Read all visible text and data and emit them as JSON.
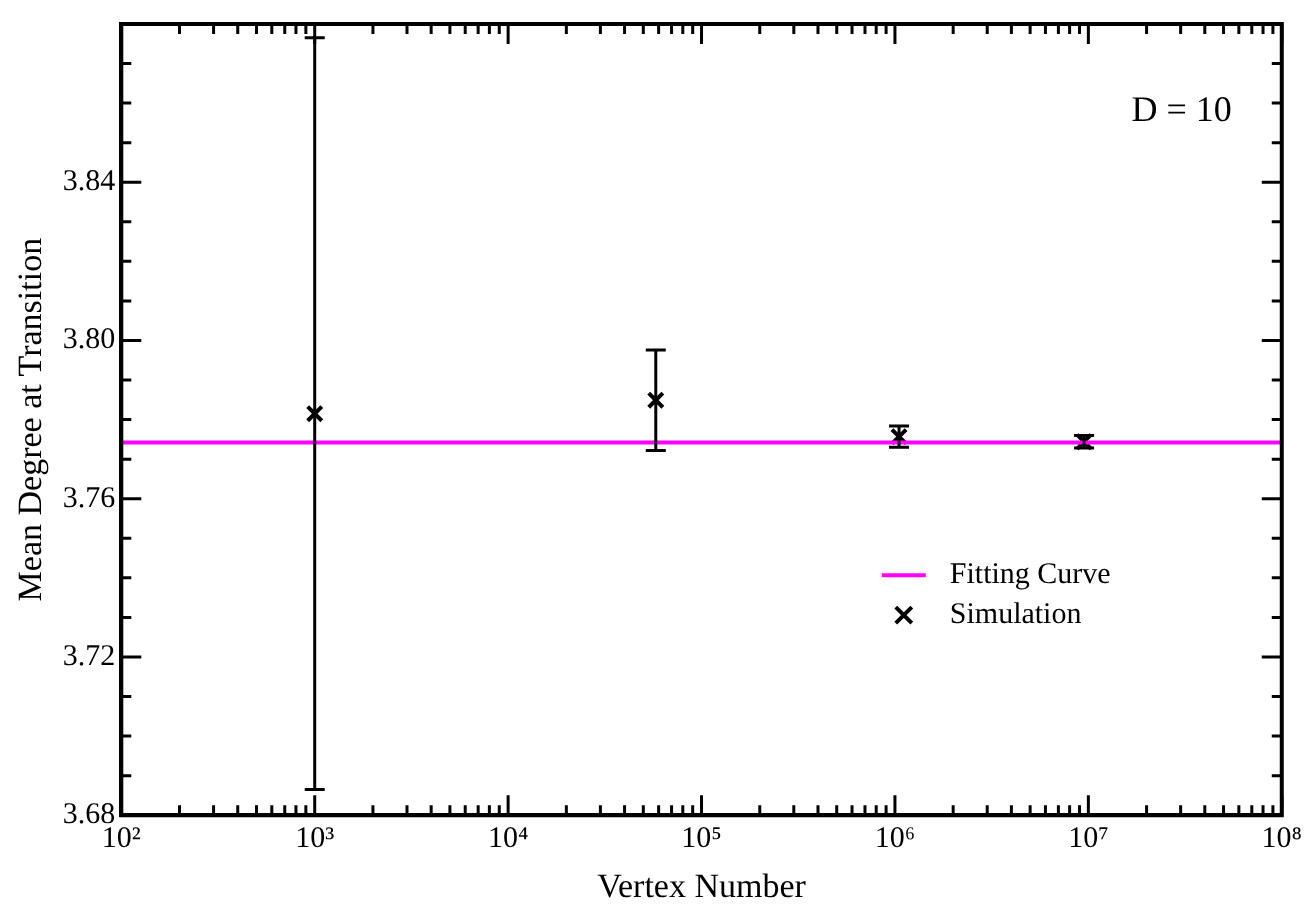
{
  "chart_data": {
    "type": "scatter",
    "xlabel": "Vertex Number",
    "ylabel": "Mean Degree at Transition",
    "annotations": [
      "D = 10"
    ],
    "log": "x",
    "xlim": [
      100,
      100000000
    ],
    "ylim": [
      3.68,
      3.88
    ],
    "xticks": [
      {
        "value": 100,
        "label": "10²"
      },
      {
        "value": 1000,
        "label": "10³"
      },
      {
        "value": 10000,
        "label": "10⁴"
      },
      {
        "value": 100000,
        "label": "10⁵"
      },
      {
        "value": 1000000,
        "label": "10⁶"
      },
      {
        "value": 10000000,
        "label": "10⁷"
      },
      {
        "value": 100000000,
        "label": "10⁸"
      }
    ],
    "yticks": [
      3.68,
      3.72,
      3.76,
      {
        "value": 3.8,
        "label": "3.80"
      },
      3.84
    ],
    "grid": false,
    "legend": "bottom right",
    "series": [
      {
        "name": "Fitting Curve",
        "type": "line",
        "marker": "none",
        "color": "#ff00ff",
        "x": [
          100,
          100000000
        ],
        "values": [
          3.7742,
          3.7742
        ]
      },
      {
        "name": "Simulation",
        "marker": "cross",
        "color": "#000000",
        "x": [
          1000,
          58000,
          1050000,
          9500000
        ],
        "values": [
          3.7815,
          3.7849,
          3.7757,
          3.7744
        ],
        "errors": [
          0.095,
          0.0127,
          0.0027,
          0.0016
        ]
      }
    ]
  }
}
